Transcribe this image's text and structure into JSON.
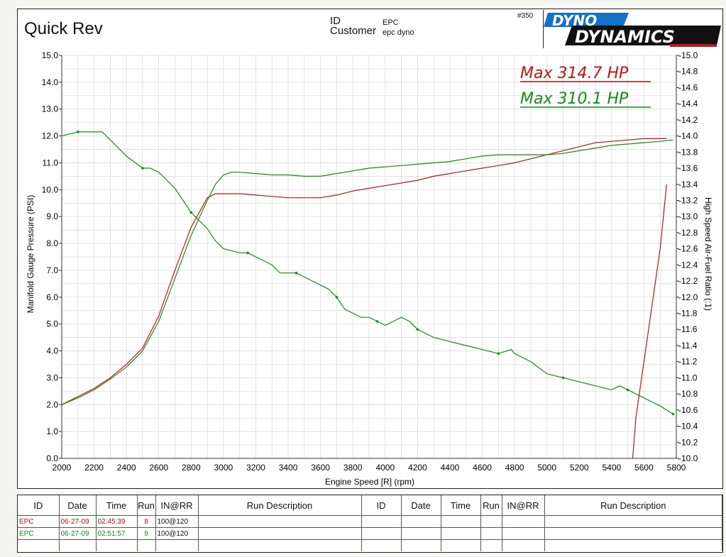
{
  "header": {
    "title": "Quick Rev",
    "id_label": "ID",
    "customer_label": "Customer",
    "id_value": "EPC",
    "customer_value": "epc dyno",
    "run_number": "#350",
    "brand_logo": "DYNO DYNAMICS"
  },
  "colors": {
    "run8": "#c0141c",
    "run9": "#1a8a1a",
    "grid": "#d6d6d6"
  },
  "chart_data": {
    "type": "line",
    "xlabel": "Engine Speed [R] (rpm)",
    "ylabel_left": "Manifold Gauge Pressure (PSI)",
    "ylabel_right": "High Speed Air-Fuel Ratio (:1)",
    "xlim": [
      2000,
      5800
    ],
    "ylim_left": [
      0.0,
      15.0
    ],
    "ylim_right": [
      10.0,
      15.0
    ],
    "x_ticks": [
      "2000",
      "2200",
      "2400",
      "2600",
      "2800",
      "3000",
      "3200",
      "3400",
      "3600",
      "3800",
      "4000",
      "4200",
      "4400",
      "4600",
      "4800",
      "5000",
      "5200",
      "5400",
      "5600",
      "5800"
    ],
    "y_ticks_left": [
      "0.0",
      "1.0",
      "2.0",
      "3.0",
      "4.0",
      "5.0",
      "6.0",
      "7.0",
      "8.0",
      "9.0",
      "10.0",
      "11.0",
      "12.0",
      "13.0",
      "14.0",
      "15.0"
    ],
    "y_ticks_right": [
      "-10.0",
      "-10.2",
      "-10.4",
      "-10.6",
      "-10.8",
      "-11.0",
      "-11.2",
      "-11.4",
      "-11.6",
      "-11.8",
      "-12.0",
      "-12.2",
      "-12.4",
      "-12.6",
      "-12.8",
      "-13.0",
      "-13.2",
      "-13.4",
      "-13.6",
      "-13.8",
      "-14.0",
      "-14.2",
      "-14.4",
      "-14.6",
      "-14.8",
      "-15.0"
    ],
    "grid": true,
    "annotations": [
      {
        "text": "Max 314.7 HP",
        "color": "#c0141c"
      },
      {
        "text": "Max 310.1 HP",
        "color": "#1a8a1a"
      }
    ],
    "series": [
      {
        "run": "8",
        "color": "#c0141c",
        "axis": "left",
        "x": [
          2000,
          2100,
          2200,
          2300,
          2400,
          2500,
          2600,
          2700,
          2800,
          2900,
          2950,
          3000,
          3100,
          3200,
          3300,
          3400,
          3500,
          3600,
          3700,
          3800,
          3900,
          4000,
          4100,
          4200,
          4300,
          4400,
          4500,
          4600,
          4700,
          4800,
          4900,
          5000,
          5100,
          5200,
          5300,
          5400,
          5500,
          5600,
          5700,
          5740
        ],
        "y": [
          2.0,
          2.3,
          2.6,
          3.0,
          3.5,
          4.1,
          5.3,
          7.0,
          8.6,
          9.7,
          9.85,
          9.85,
          9.85,
          9.8,
          9.75,
          9.7,
          9.7,
          9.7,
          9.8,
          9.95,
          10.05,
          10.15,
          10.25,
          10.35,
          10.5,
          10.6,
          10.7,
          10.8,
          10.9,
          11.0,
          11.15,
          11.3,
          11.45,
          11.6,
          11.75,
          11.8,
          11.85,
          11.9,
          11.9,
          11.9
        ]
      },
      {
        "run": "9",
        "color": "#1a8a1a",
        "axis": "left",
        "x": [
          2000,
          2100,
          2200,
          2300,
          2400,
          2500,
          2600,
          2700,
          2800,
          2900,
          2950,
          3000,
          3050,
          3100,
          3200,
          3300,
          3400,
          3500,
          3600,
          3700,
          3800,
          3900,
          4000,
          4100,
          4200,
          4300,
          4400,
          4500,
          4600,
          4700,
          4800,
          4900,
          5000,
          5100,
          5200,
          5300,
          5400,
          5500,
          5600,
          5700,
          5780
        ],
        "y": [
          2.0,
          2.25,
          2.55,
          2.95,
          3.4,
          4.0,
          5.1,
          6.7,
          8.3,
          9.6,
          10.2,
          10.55,
          10.65,
          10.65,
          10.6,
          10.55,
          10.55,
          10.5,
          10.5,
          10.6,
          10.7,
          10.8,
          10.85,
          10.9,
          10.95,
          11.0,
          11.05,
          11.15,
          11.25,
          11.3,
          11.3,
          11.3,
          11.3,
          11.35,
          11.45,
          11.55,
          11.65,
          11.7,
          11.75,
          11.8,
          11.85
        ]
      },
      {
        "run": "9",
        "color": "#1a8a1a",
        "axis": "right",
        "x": [
          2000,
          2100,
          2200,
          2250,
          2300,
          2400,
          2500,
          2550,
          2600,
          2650,
          2700,
          2800,
          2900,
          2950,
          3000,
          3100,
          3150,
          3200,
          3300,
          3350,
          3400,
          3450,
          3500,
          3550,
          3600,
          3650,
          3700,
          3750,
          3800,
          3850,
          3900,
          3950,
          4000,
          4050,
          4100,
          4150,
          4200,
          4300,
          4400,
          4500,
          4600,
          4700,
          4780,
          4800,
          4900,
          5000,
          5100,
          5200,
          5300,
          5400,
          5450,
          5500,
          5550,
          5600,
          5650,
          5700,
          5780
        ],
        "y": [
          14.0,
          14.05,
          14.05,
          14.05,
          13.95,
          13.75,
          13.6,
          13.6,
          13.55,
          13.45,
          13.35,
          13.05,
          12.85,
          12.7,
          12.6,
          12.55,
          12.55,
          12.5,
          12.4,
          12.3,
          12.3,
          12.3,
          12.25,
          12.2,
          12.15,
          12.1,
          12.0,
          11.85,
          11.8,
          11.75,
          11.75,
          11.7,
          11.65,
          11.7,
          11.75,
          11.7,
          11.6,
          11.5,
          11.45,
          11.4,
          11.35,
          11.3,
          11.35,
          11.3,
          11.2,
          11.05,
          11.0,
          10.95,
          10.9,
          10.85,
          10.9,
          10.85,
          10.8,
          10.75,
          10.7,
          10.65,
          10.55
        ]
      },
      {
        "run": "8",
        "color": "#c0141c",
        "axis": "right",
        "x": [
          5740,
          5720,
          5700,
          5650,
          5600,
          5550,
          5530
        ],
        "y": [
          13.4,
          13.0,
          12.6,
          11.9,
          11.2,
          10.5,
          10.0
        ]
      }
    ]
  },
  "table": {
    "headers": [
      "ID",
      "Date",
      "Time",
      "Run",
      "IN@RR",
      "Run Description",
      "ID",
      "Date",
      "Time",
      "Run",
      "IN@RR",
      "Run Description"
    ],
    "rows": [
      {
        "id": "EPC",
        "date": "06-27-09",
        "time": "02:45:39",
        "run": "8",
        "inrr": "100@120",
        "color": "#c0141c"
      },
      {
        "id": "EPC",
        "date": "06-27-09",
        "time": "02:51:57",
        "run": "9",
        "inrr": "100@120",
        "color": "#1a8a1a"
      }
    ]
  }
}
